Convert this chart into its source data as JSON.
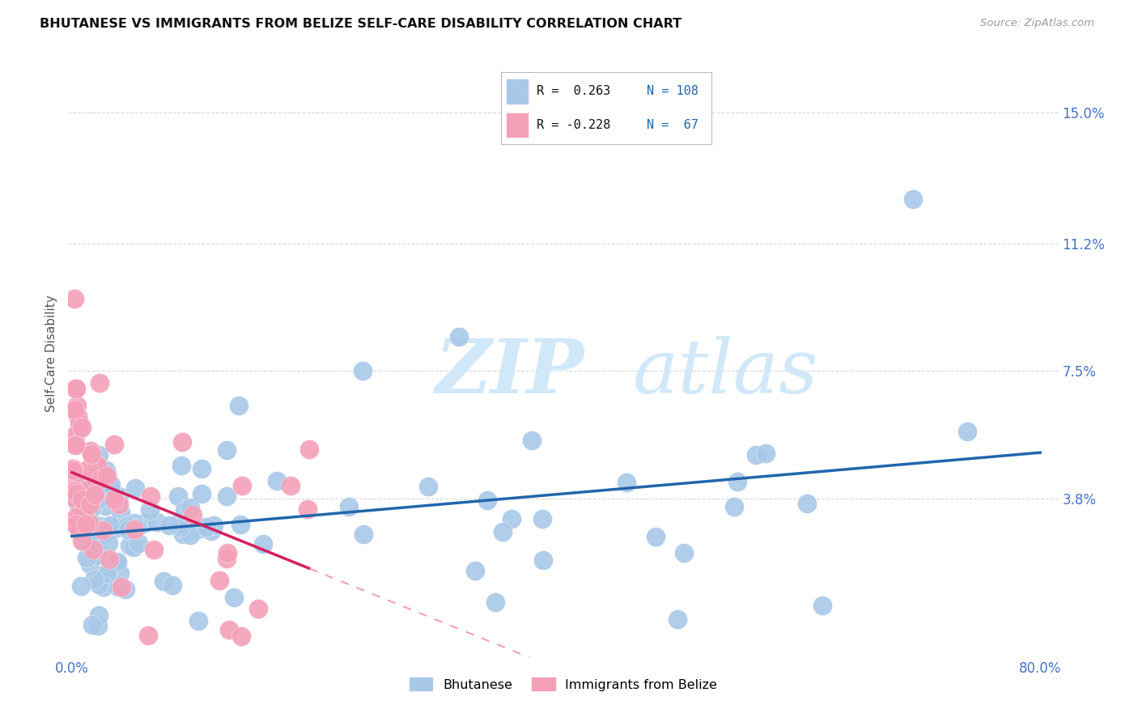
{
  "title": "BHUTANESE VS IMMIGRANTS FROM BELIZE SELF-CARE DISABILITY CORRELATION CHART",
  "source": "Source: ZipAtlas.com",
  "ylabel": "Self-Care Disability",
  "yticks_labels": [
    "15.0%",
    "11.2%",
    "7.5%",
    "3.8%"
  ],
  "ytick_vals": [
    0.15,
    0.112,
    0.075,
    0.038
  ],
  "xlim": [
    -0.003,
    0.815
  ],
  "ylim": [
    -0.008,
    0.168
  ],
  "color_bhutanese": "#a8c8e8",
  "color_belize": "#f4a0b8",
  "color_bhutanese_line": "#2166ac",
  "color_belize_line": "#d42060",
  "color_belize_line_dashed": "#f4a0b8",
  "watermark_color": "#d0e8f8",
  "bhutanese_seed": 123,
  "belize_seed": 456
}
